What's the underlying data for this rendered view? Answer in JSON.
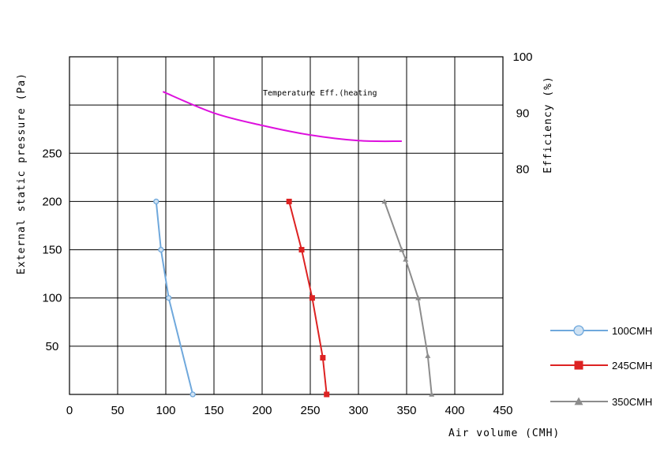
{
  "chart_data": {
    "type": "line",
    "xlabel": "Air volume (CMH)",
    "ylabel_left": "External static pressure (Pa)",
    "ylabel_right": "Efficiency (%)",
    "xlim": [
      0,
      450
    ],
    "ylim_left": [
      0,
      350
    ],
    "ylim_right": [
      40,
      100
    ],
    "x_ticks": [
      "0",
      "50",
      "100",
      "150",
      "200",
      "250",
      "300",
      "350",
      "400",
      "450"
    ],
    "y_ticks_left": [
      "50",
      "100",
      "150",
      "200",
      "250"
    ],
    "y_ticks_right": [
      "80",
      "90",
      "100"
    ],
    "grid": true,
    "legend_position": "right",
    "series": [
      {
        "name": "100CMH",
        "color": "#6fa8dc",
        "marker": "circle",
        "axis": "left",
        "points": [
          [
            90,
            200
          ],
          [
            95,
            150
          ],
          [
            103,
            100
          ],
          [
            128,
            0
          ]
        ]
      },
      {
        "name": "245CMH",
        "color": "#dd2222",
        "marker": "square",
        "axis": "left",
        "points": [
          [
            228,
            200
          ],
          [
            241,
            150
          ],
          [
            252,
            100
          ],
          [
            263,
            38
          ],
          [
            267,
            0
          ]
        ]
      },
      {
        "name": "350CMH",
        "color": "#8c8c8c",
        "marker": "triangle",
        "axis": "left",
        "points": [
          [
            327,
            200
          ],
          [
            345,
            150
          ],
          [
            349,
            140
          ],
          [
            362,
            100
          ],
          [
            372,
            40
          ],
          [
            376,
            0
          ]
        ]
      }
    ],
    "efficiency_curve": {
      "label": "Temperature Eff.(heating",
      "color": "#dd10dd",
      "axis": "right",
      "points": [
        [
          97,
          93.8
        ],
        [
          150,
          90.0
        ],
        [
          200,
          87.8
        ],
        [
          250,
          86.1
        ],
        [
          300,
          85.1
        ],
        [
          345,
          85.0
        ]
      ]
    }
  }
}
